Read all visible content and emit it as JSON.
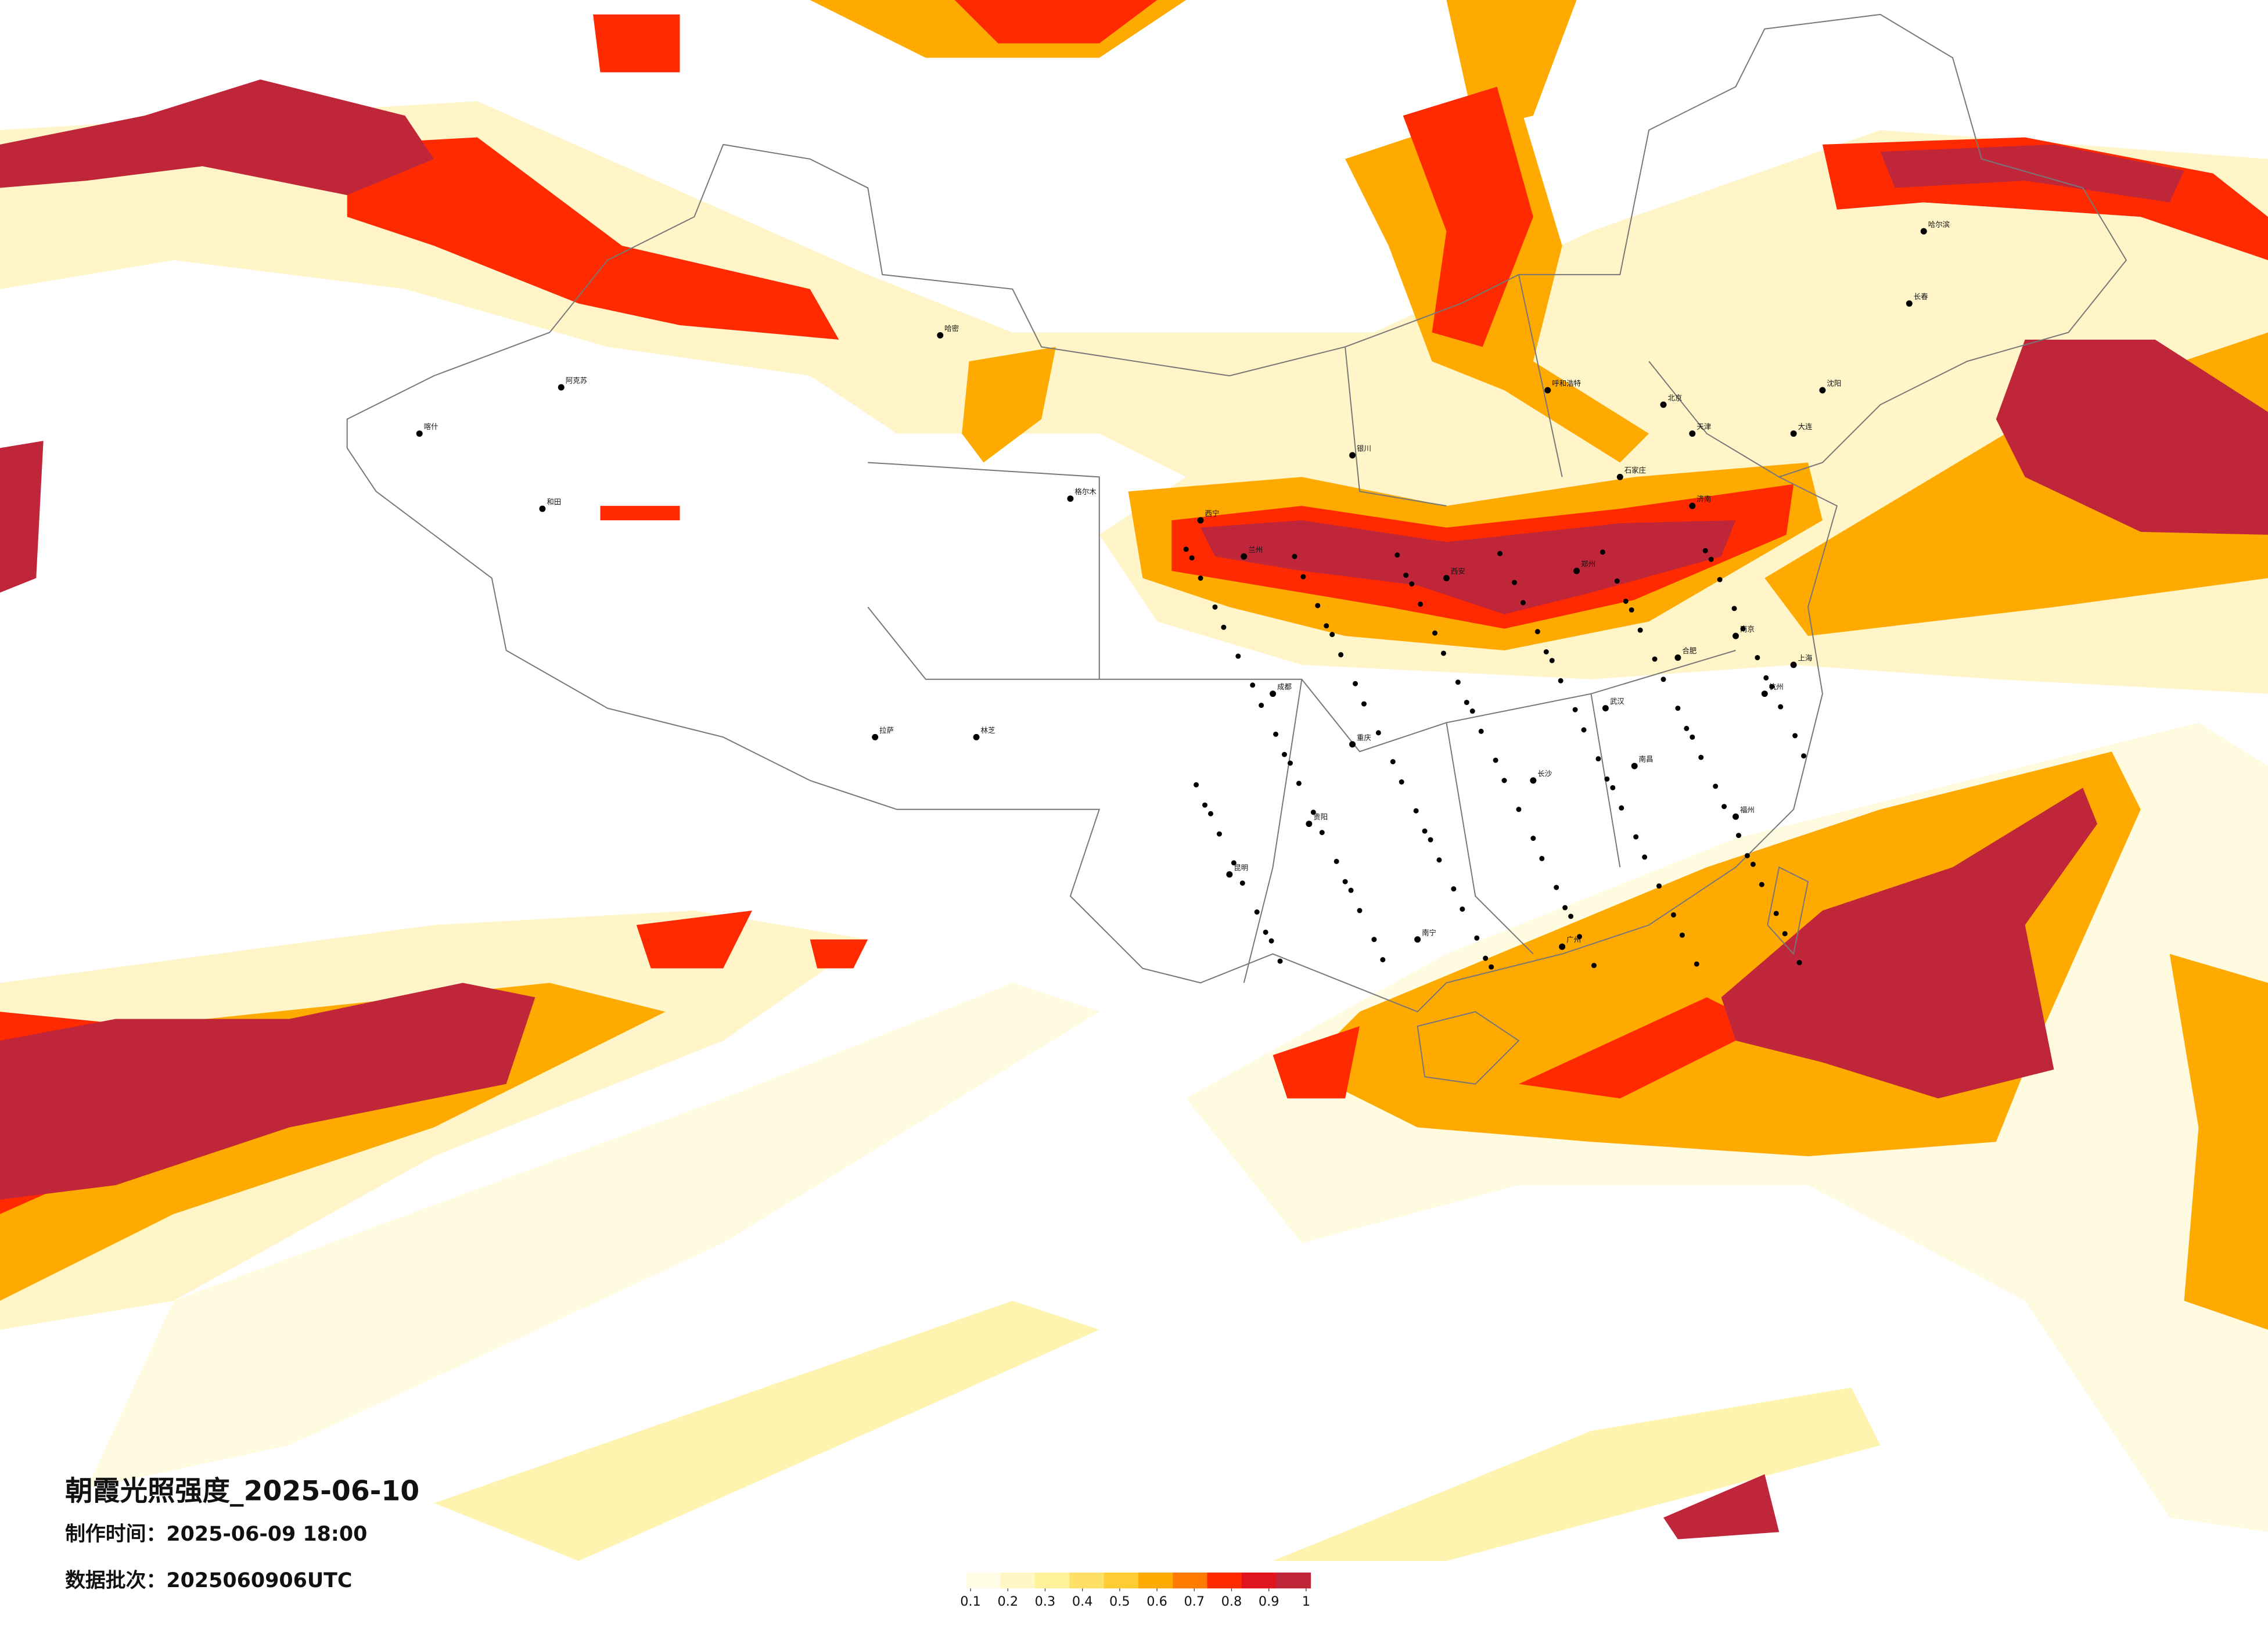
{
  "header": {
    "title": "朝霞光照强度_2025-06-10",
    "made_time": "制作时间：2025-06-09 18:00",
    "batch": "数据批次：2025060906UTC"
  },
  "legend": {
    "colors": [
      "#fffde6",
      "#fff8c4",
      "#fff09a",
      "#ffe066",
      "#ffcc33",
      "#ffaa00",
      "#ff7a00",
      "#ff2a00",
      "#e0141e",
      "#c0263a"
    ],
    "ticks": [
      0.1,
      0.2,
      0.3,
      0.4,
      0.5,
      0.6,
      0.7,
      0.8,
      0.9,
      1
    ]
  },
  "cities": [
    "阿克苏",
    "和田",
    "喀什",
    "哈密",
    "格尔木",
    "拉萨",
    "林芝",
    "西宁",
    "兰州",
    "银川",
    "呼和浩特",
    "北京",
    "天津",
    "石家庄",
    "济南",
    "郑州",
    "西安",
    "成都",
    "重庆",
    "昆明",
    "贵阳",
    "南宁",
    "长沙",
    "武汉",
    "南昌",
    "合肥",
    "南京",
    "上海",
    "杭州",
    "福州",
    "广州",
    "哈尔滨",
    "长春",
    "沈阳",
    "大连"
  ]
}
